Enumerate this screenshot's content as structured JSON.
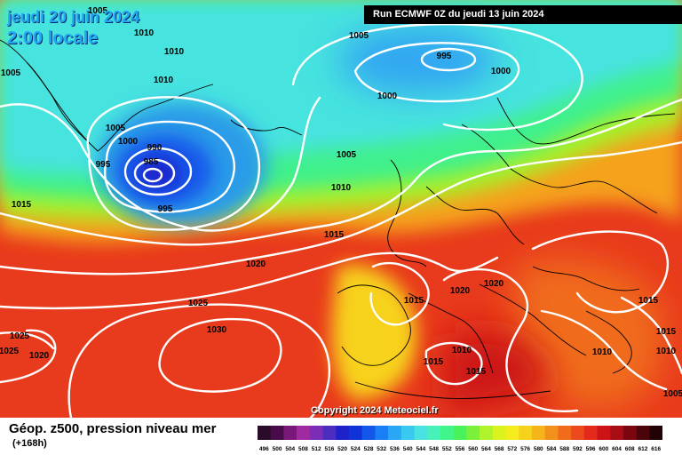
{
  "header": {
    "date_label": "jeudi 20 juin 2024",
    "time_label": "2:00 locale",
    "run_label": "Run ECMWF 0Z du jeudi 13 juin 2024"
  },
  "map": {
    "isobar_labels": [
      "1005",
      "1010",
      "1010",
      "1010",
      "1005",
      "1005",
      "995",
      "1000",
      "1000",
      "1005",
      "1000",
      "990",
      "985",
      "995",
      "995",
      "1015",
      "1005",
      "1010",
      "1015",
      "1020",
      "1025",
      "1025",
      "1025",
      "1030",
      "1020",
      "1020",
      "1020",
      "1015",
      "1015",
      "1010",
      "1015",
      "1015",
      "1015",
      "1010",
      "1010",
      "1005"
    ]
  },
  "footer": {
    "title": "Géop. z500, pression niveau mer",
    "subtitle": "(+168h)",
    "copyright": "Copyright 2024 Meteociel.fr"
  },
  "legend": {
    "values": [
      "496",
      "500",
      "504",
      "508",
      "512",
      "516",
      "520",
      "524",
      "528",
      "532",
      "536",
      "540",
      "544",
      "548",
      "552",
      "556",
      "560",
      "564",
      "568",
      "572",
      "576",
      "580",
      "584",
      "588",
      "592",
      "596",
      "600",
      "604",
      "608",
      "612",
      "616"
    ],
    "colors": [
      "#2a0b2a",
      "#4a0b4a",
      "#7a187a",
      "#a02aa0",
      "#7b2db8",
      "#4d2dbf",
      "#1f22c9",
      "#1033d9",
      "#1456ea",
      "#1a7ff5",
      "#29a7f5",
      "#38c8f0",
      "#49e2e0",
      "#46f2b8",
      "#40f58a",
      "#49f25a",
      "#7af03a",
      "#aef32b",
      "#dcf21e",
      "#f5ec1e",
      "#f7d21c",
      "#f5b41a",
      "#f29119",
      "#f06c1a",
      "#ec4a1c",
      "#e32a1c",
      "#cc1418",
      "#a80c14",
      "#7c0610",
      "#4a040a",
      "#220204"
    ]
  }
}
